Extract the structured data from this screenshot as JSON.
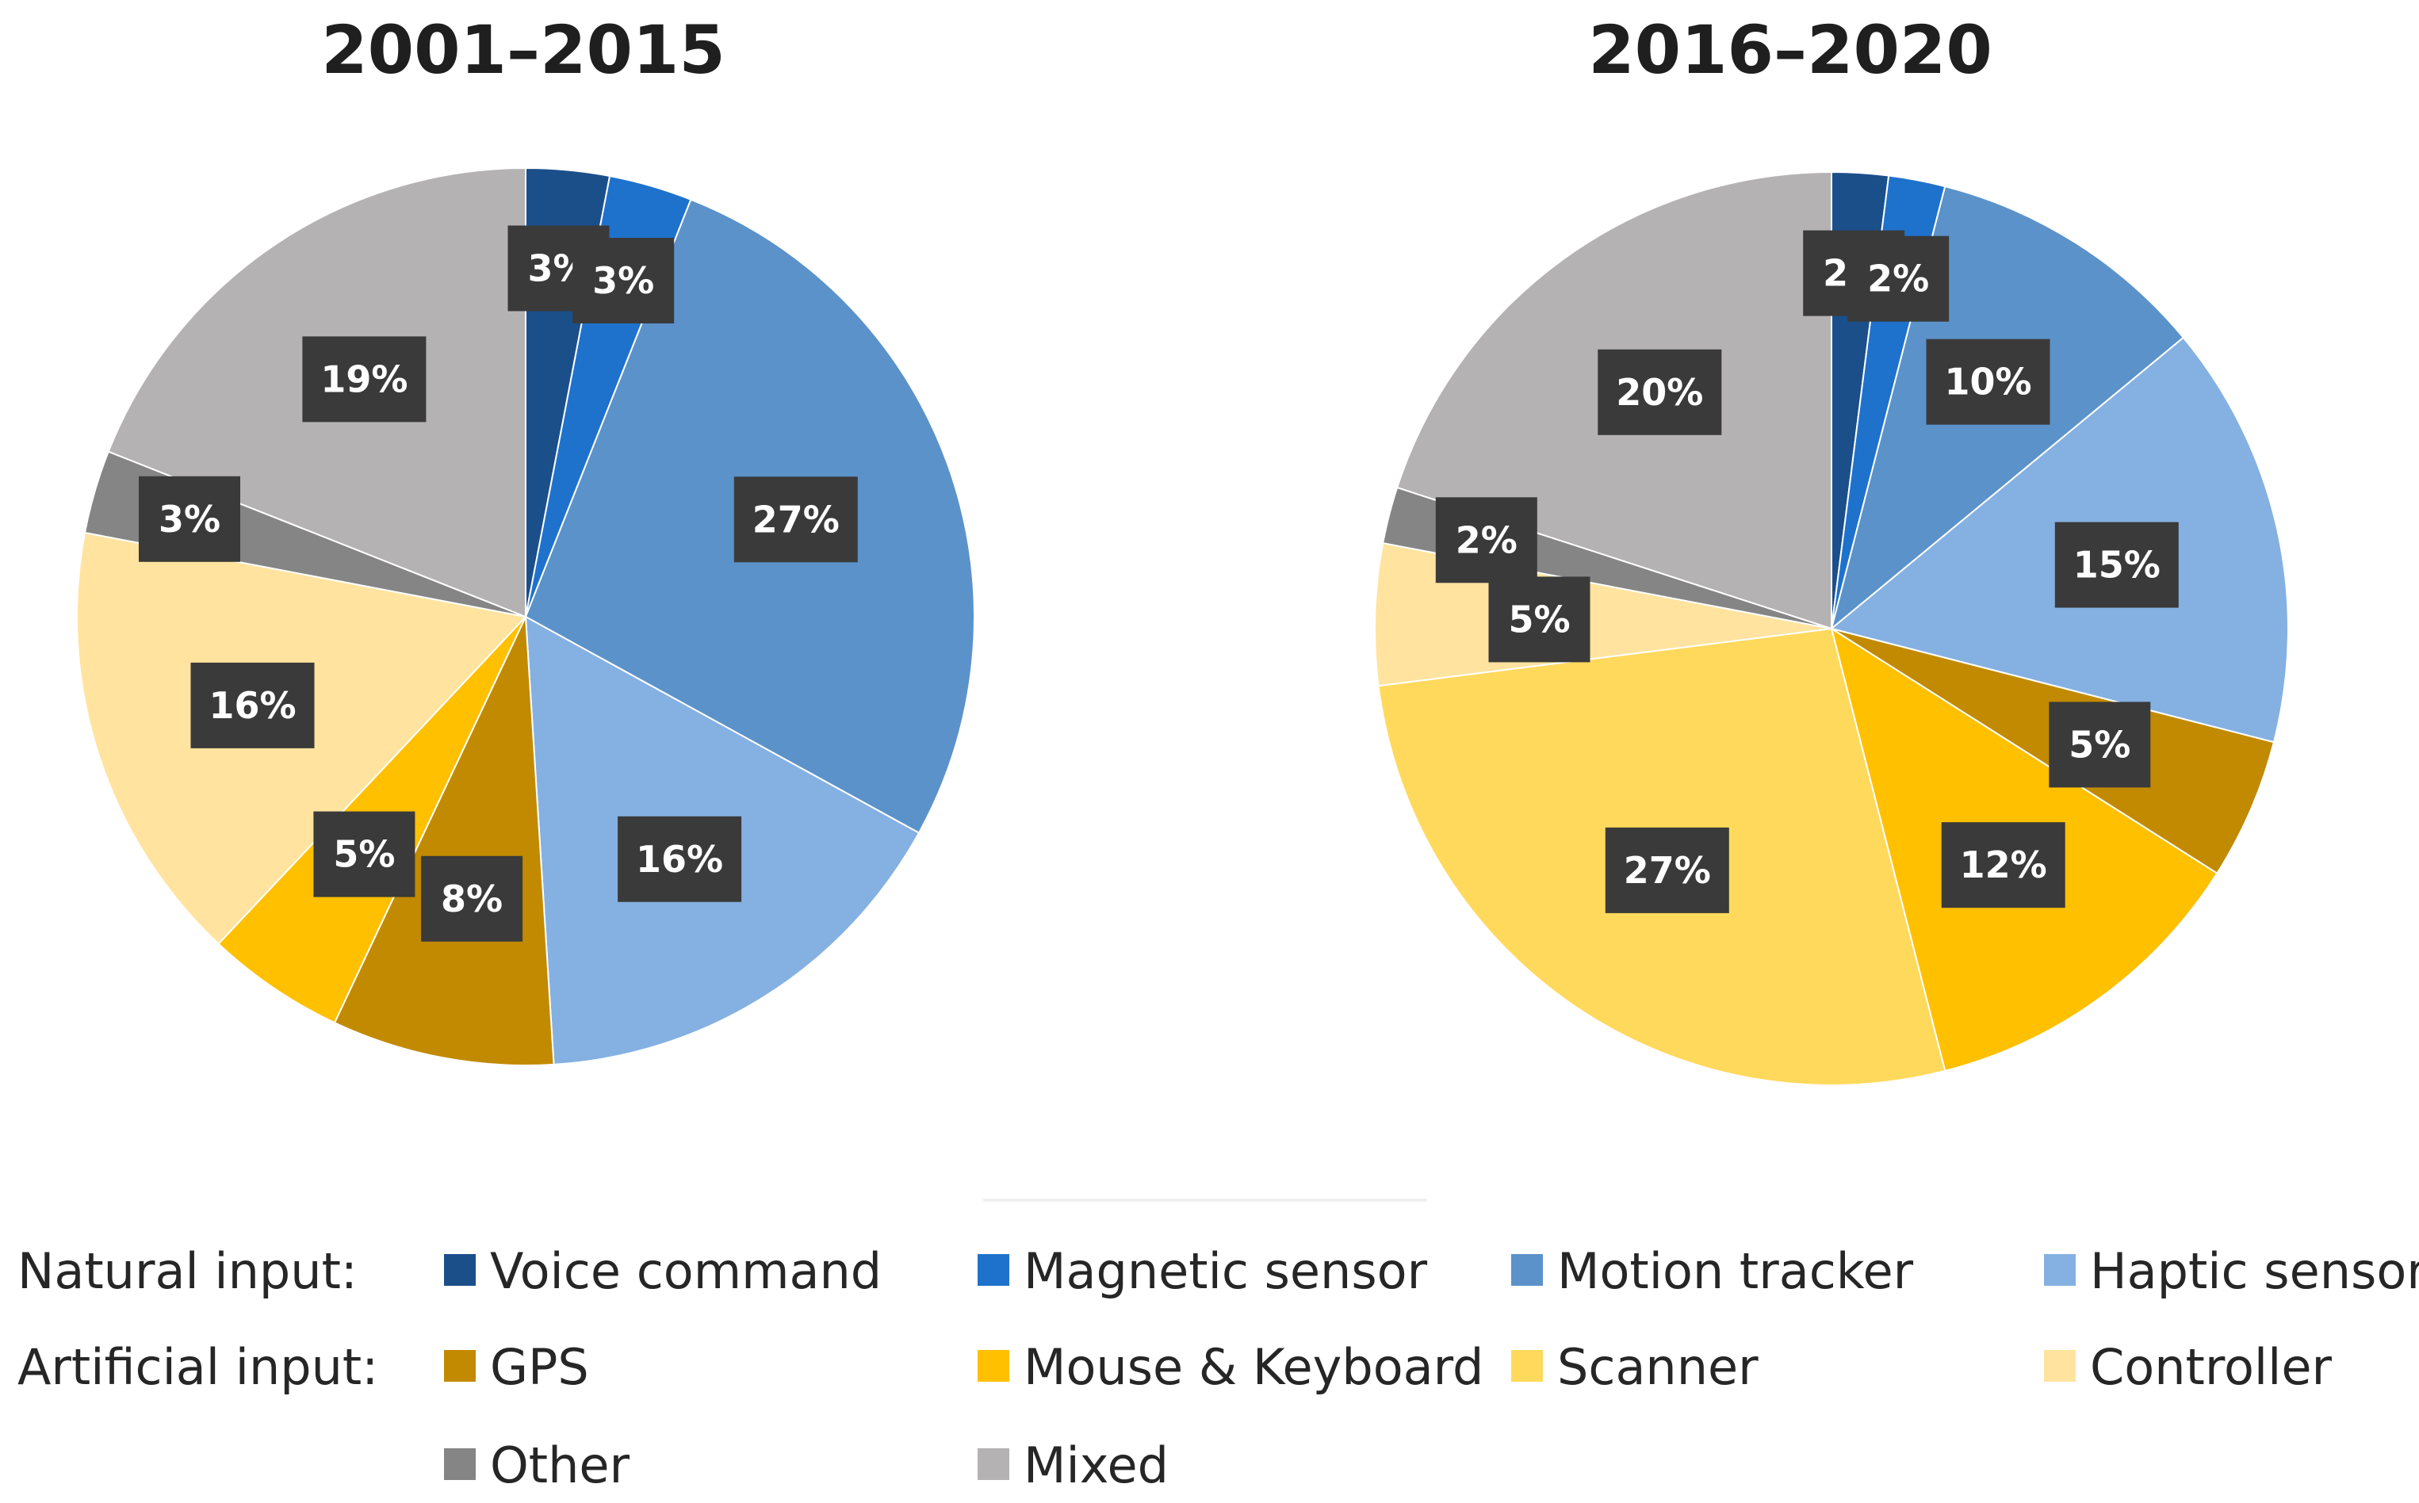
{
  "legend": {
    "natural_label": "Natural input:",
    "artificial_label": "Artificial input:"
  },
  "chart_data": [
    {
      "type": "pie",
      "title": "2001–2015",
      "categories": [
        "Voice command",
        "Magnetic sensor",
        "Motion tracker",
        "Haptic sensor",
        "GPS",
        "Mouse & Keyboard",
        "Controller",
        "Other",
        "Mixed"
      ],
      "values": [
        3,
        3,
        27,
        16,
        8,
        5,
        16,
        3,
        19
      ],
      "labels": [
        "3%",
        "3%",
        "27%",
        "16%",
        "8%",
        "5%",
        "16%",
        "3%",
        "19%"
      ],
      "start_angle_deg": 0,
      "direction": "clockwise"
    },
    {
      "type": "pie",
      "title": "2016–2020",
      "categories": [
        "Voice command",
        "Magnetic sensor",
        "Motion tracker",
        "Haptic sensor",
        "GPS",
        "Mouse & Keyboard",
        "Scanner",
        "Controller",
        "Other",
        "Mixed"
      ],
      "values": [
        2,
        2,
        10,
        15,
        5,
        12,
        27,
        5,
        2,
        20
      ],
      "labels": [
        "2%",
        "2%",
        "10%",
        "15%",
        "5%",
        "12%",
        "27%",
        "5%",
        "2%",
        "20%"
      ],
      "start_angle_deg": 0,
      "direction": "clockwise"
    }
  ],
  "series_legend": [
    {
      "name": "Voice command",
      "group": "Natural input",
      "color": "#1b4f8a"
    },
    {
      "name": "Magnetic sensor",
      "group": "Natural input",
      "color": "#1f72cc"
    },
    {
      "name": "Motion tracker",
      "group": "Natural input",
      "color": "#5b92c9"
    },
    {
      "name": "Haptic sensor",
      "group": "Natural input",
      "color": "#85b0e2"
    },
    {
      "name": "GPS",
      "group": "Artificial input",
      "color": "#c28a00"
    },
    {
      "name": "Mouse & Keyboard",
      "group": "Artificial input",
      "color": "#ffc000"
    },
    {
      "name": "Scanner",
      "group": "Artificial input",
      "color": "#ffd95c"
    },
    {
      "name": "Controller",
      "group": "Artificial input",
      "color": "#ffe39f"
    },
    {
      "name": "Other",
      "group": "Artificial input",
      "color": "#858585"
    },
    {
      "name": "Mixed",
      "group": "Artificial input",
      "color": "#b4b2b2"
    }
  ],
  "colors": {
    "label_box": "#3a3a3a",
    "label_text": "#ffffff",
    "slice_border": "#ffffff"
  }
}
